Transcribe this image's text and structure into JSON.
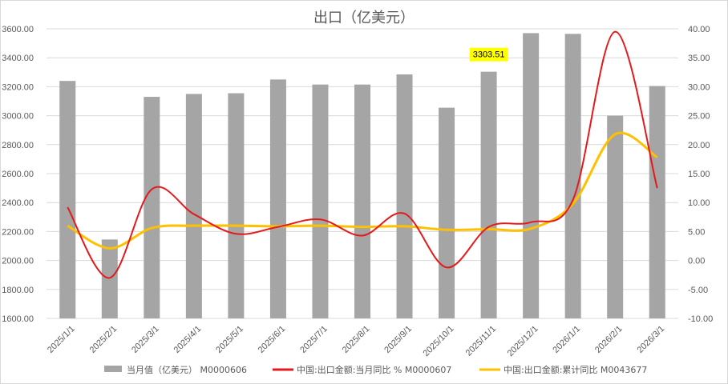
{
  "chart_data": {
    "type": "bar",
    "title": "出口（亿美元）",
    "categories": [
      "2025/1/1",
      "2025/2/1",
      "2025/3/1",
      "2025/4/1",
      "2025/5/1",
      "2025/6/1",
      "2025/7/1",
      "2025/8/1",
      "2025/9/1",
      "2025/10/1",
      "2025/11/1",
      "2025/12/1",
      "2026/1/1",
      "2026/2/1",
      "2026/3/1"
    ],
    "left_axis": {
      "min": 1600,
      "max": 3600,
      "step": 200,
      "tick_labels": [
        "1600.00",
        "1800.00",
        "2000.00",
        "2200.00",
        "2400.00",
        "2600.00",
        "2800.00",
        "3000.00",
        "3200.00",
        "3400.00",
        "3600.00"
      ]
    },
    "right_axis": {
      "min": -10,
      "max": 40,
      "step": 5,
      "tick_labels": [
        "-10.00",
        "-5.00",
        "0.00",
        "5.00",
        "10.00",
        "15.00",
        "20.00",
        "25.00",
        "30.00",
        "35.00",
        "40.00"
      ]
    },
    "series": [
      {
        "name": "当月值（亿美元）  M0000606",
        "type": "bar",
        "axis": "left",
        "color": "#a5a5a5",
        "values": [
          3240,
          2145,
          3130,
          3150,
          3155,
          3250,
          3215,
          3215,
          3285,
          3055,
          3303.51,
          3570,
          3565,
          3000,
          3205
        ]
      },
      {
        "name": "中国:出口金额:当月同比 % M0000607",
        "type": "line",
        "axis": "right",
        "color": "#e31a1c",
        "values": [
          9.2,
          -3.0,
          12.3,
          8.0,
          4.6,
          5.8,
          7.1,
          4.3,
          8.1,
          -1.2,
          5.8,
          6.6,
          10.5,
          39.5,
          12.5
        ]
      },
      {
        "name": "中国:出口金额:累计同比 M0043677",
        "type": "line",
        "axis": "right",
        "color": "#ffc000",
        "values": [
          6.0,
          2.1,
          5.6,
          6.0,
          6.0,
          5.9,
          6.0,
          5.8,
          5.9,
          5.3,
          5.4,
          5.5,
          9.8,
          21.8,
          17.8
        ]
      }
    ],
    "data_label": {
      "category": "2025/11/1",
      "text": "3303.51",
      "bg": "#ffff00"
    },
    "grid": true,
    "legend_position": "bottom"
  }
}
